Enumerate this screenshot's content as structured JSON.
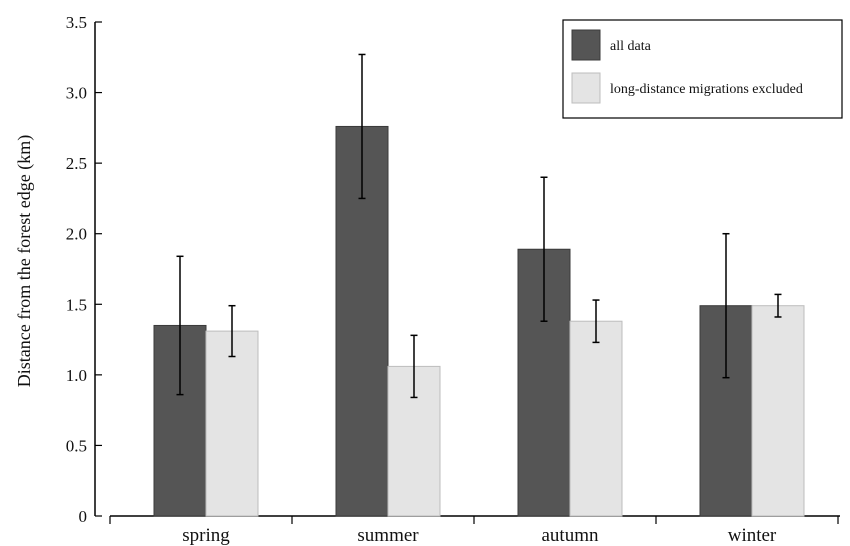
{
  "chart_data": {
    "type": "bar",
    "title": "",
    "xlabel": "",
    "ylabel": "Distance from the forest edge (km)",
    "categories": [
      "spring",
      "summer",
      "autumn",
      "winter"
    ],
    "ylim": [
      0,
      3.5
    ],
    "yticks": [
      0,
      0.5,
      1.0,
      1.5,
      2.0,
      2.5,
      3.0,
      3.5
    ],
    "ytick_labels": [
      "0",
      "0.5",
      "1.0",
      "1.5",
      "2.0",
      "2.5",
      "3.0",
      "3.5"
    ],
    "grid": false,
    "legend_position": "top-right",
    "series": [
      {
        "name": "all data",
        "color": "#555555",
        "values": [
          1.35,
          2.76,
          1.89,
          1.49
        ],
        "error": [
          0.49,
          0.51,
          0.51,
          0.51
        ]
      },
      {
        "name": "long-distance migrations excluded",
        "color": "#e4e4e4",
        "values": [
          1.31,
          1.06,
          1.38,
          1.49
        ],
        "error": [
          0.18,
          0.22,
          0.15,
          0.08
        ]
      }
    ]
  }
}
